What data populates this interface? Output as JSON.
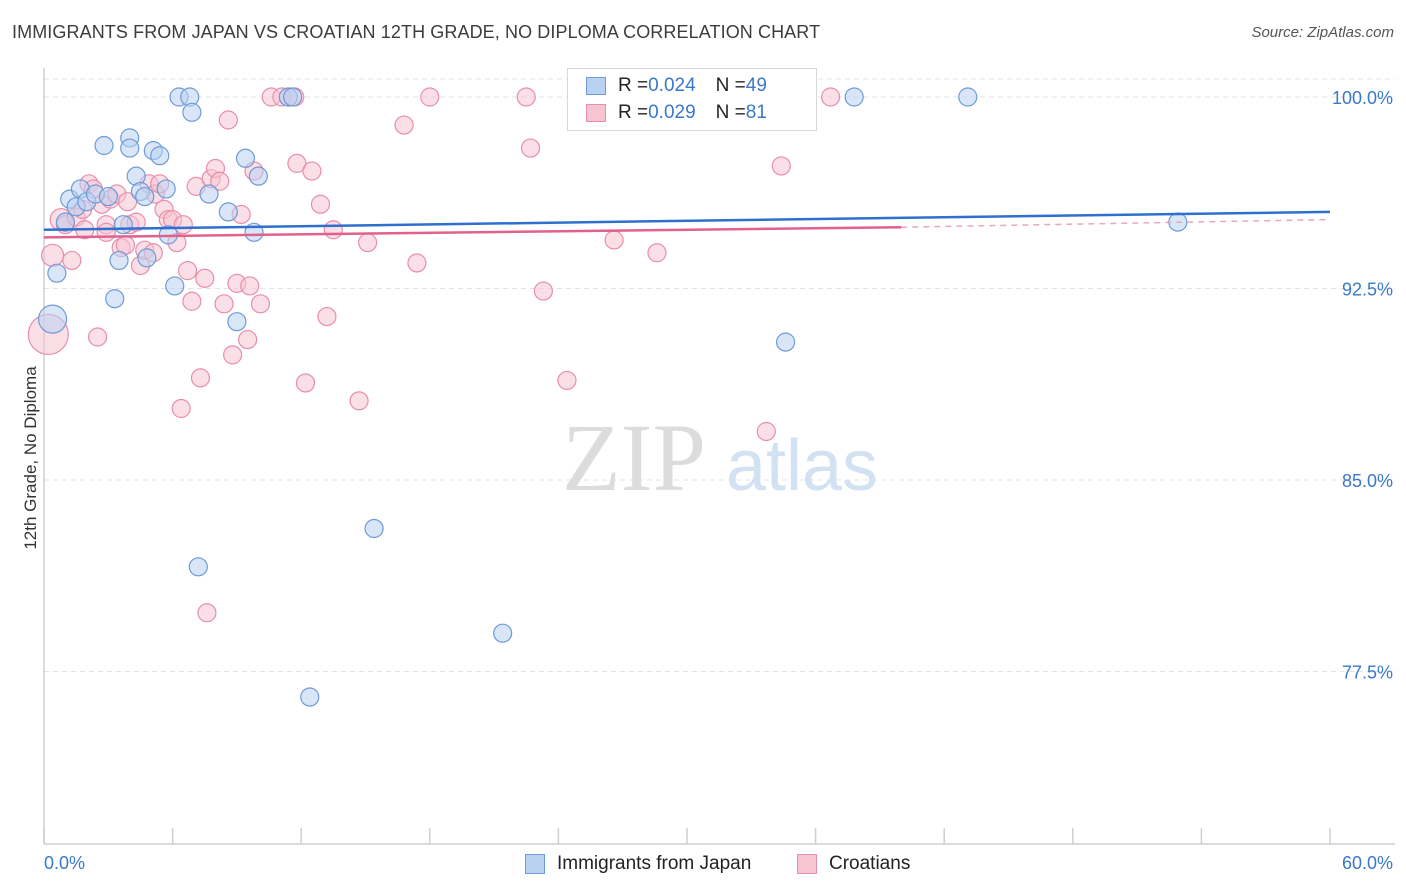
{
  "title": "IMMIGRANTS FROM JAPAN VS CROATIAN 12TH GRADE, NO DIPLOMA CORRELATION CHART",
  "source": "Source: ZipAtlas.com",
  "watermark": {
    "zip": "ZIP",
    "atlas": "atlas"
  },
  "colors": {
    "japan_fill": "#b9d2f2",
    "japan_stroke": "#6f9ad6",
    "japan_line": "#2f6fcf",
    "croatian_fill": "#f6c4d3",
    "croatian_stroke": "#e88eab",
    "croatian_line": "#e0608e",
    "axis_label": "#3a78c9",
    "grid": "#e3e3e3"
  },
  "legend": {
    "japan": {
      "r_label": "R = ",
      "r_value": "0.024",
      "n_label": "N = ",
      "n_value": "49"
    },
    "croatian": {
      "r_label": "R = ",
      "r_value": "0.029",
      "n_label": "N = ",
      "n_value": "81"
    }
  },
  "chart_data": {
    "type": "scatter",
    "xlabel": "",
    "ylabel": "12th Grade, No Diploma",
    "xlim": [
      0,
      60
    ],
    "ylim": [
      70.0,
      101.5
    ],
    "x_tick_labels": [
      {
        "value": 0,
        "label": "0.0%"
      },
      {
        "value": 60,
        "label": "60.0%"
      }
    ],
    "y_tick_labels": [
      {
        "value": 100.0,
        "label": "100.0%"
      },
      {
        "value": 92.5,
        "label": "92.5%"
      },
      {
        "value": 85.0,
        "label": "85.0%"
      },
      {
        "value": 77.5,
        "label": "77.5%"
      }
    ],
    "grid": true,
    "legend_position": "top-center and bottom",
    "series": [
      {
        "name": "Immigrants from Japan",
        "trend": {
          "x": [
            0,
            60
          ],
          "y": [
            94.8,
            95.5
          ]
        },
        "points": [
          [
            0.4,
            91.3,
            14
          ],
          [
            0.6,
            93.1,
            9
          ],
          [
            1.0,
            95.1,
            9
          ],
          [
            1.2,
            96.0,
            9
          ],
          [
            1.5,
            95.7,
            9
          ],
          [
            1.7,
            96.4,
            9
          ],
          [
            2.0,
            95.9,
            9
          ],
          [
            2.4,
            96.2,
            9
          ],
          [
            2.8,
            98.1,
            9
          ],
          [
            3.0,
            96.1,
            9
          ],
          [
            3.3,
            92.1,
            9
          ],
          [
            3.5,
            93.6,
            9
          ],
          [
            3.7,
            95.0,
            9
          ],
          [
            4.0,
            98.4,
            9
          ],
          [
            4.0,
            98.0,
            9
          ],
          [
            4.3,
            96.9,
            9
          ],
          [
            4.5,
            96.3,
            9
          ],
          [
            4.7,
            96.1,
            9
          ],
          [
            4.8,
            93.7,
            9
          ],
          [
            5.1,
            97.9,
            9
          ],
          [
            5.4,
            97.7,
            9
          ],
          [
            5.7,
            96.4,
            9
          ],
          [
            5.8,
            94.6,
            9
          ],
          [
            6.1,
            92.6,
            9
          ],
          [
            6.3,
            100.0,
            9
          ],
          [
            6.8,
            100.0,
            9
          ],
          [
            6.9,
            99.4,
            9
          ],
          [
            7.2,
            81.6,
            9
          ],
          [
            7.7,
            96.2,
            9
          ],
          [
            8.6,
            95.5,
            9
          ],
          [
            9.0,
            91.2,
            9
          ],
          [
            9.4,
            97.6,
            9
          ],
          [
            9.8,
            94.7,
            9
          ],
          [
            10.0,
            96.9,
            9
          ],
          [
            11.4,
            100.0,
            9
          ],
          [
            11.6,
            100.0,
            9
          ],
          [
            12.4,
            76.5,
            9
          ],
          [
            15.4,
            83.1,
            9
          ],
          [
            21.4,
            79.0,
            9
          ],
          [
            28.5,
            100.0,
            9
          ],
          [
            34.6,
            90.4,
            9
          ],
          [
            37.8,
            100.0,
            9
          ],
          [
            43.1,
            100.0,
            9
          ],
          [
            52.9,
            95.1,
            9
          ]
        ]
      },
      {
        "name": "Croatians",
        "trend": {
          "x": [
            0,
            40
          ],
          "y": [
            94.5,
            94.9
          ]
        },
        "dashed_extension": {
          "x": [
            40,
            60
          ],
          "y": [
            94.9,
            95.2
          ]
        },
        "points": [
          [
            0.2,
            90.7,
            20
          ],
          [
            0.4,
            93.8,
            11
          ],
          [
            0.8,
            95.2,
            11
          ],
          [
            1.0,
            95.0,
            9
          ],
          [
            1.3,
            93.6,
            9
          ],
          [
            1.5,
            95.3,
            9
          ],
          [
            1.9,
            94.8,
            9
          ],
          [
            2.1,
            96.6,
            9
          ],
          [
            2.3,
            96.4,
            9
          ],
          [
            2.5,
            90.6,
            9
          ],
          [
            2.7,
            95.8,
            9
          ],
          [
            2.9,
            95.0,
            9
          ],
          [
            3.1,
            96.0,
            9
          ],
          [
            3.4,
            96.2,
            9
          ],
          [
            3.6,
            94.1,
            9
          ],
          [
            3.8,
            94.2,
            9
          ],
          [
            4.0,
            95.0,
            9
          ],
          [
            4.3,
            95.1,
            9
          ],
          [
            4.5,
            93.4,
            9
          ],
          [
            4.7,
            94.0,
            9
          ],
          [
            4.9,
            96.6,
            9
          ],
          [
            5.2,
            96.2,
            9
          ],
          [
            5.4,
            96.6,
            9
          ],
          [
            5.6,
            95.6,
            9
          ],
          [
            5.8,
            95.2,
            9
          ],
          [
            6.0,
            95.2,
            9
          ],
          [
            6.2,
            94.3,
            9
          ],
          [
            6.4,
            87.8,
            9
          ],
          [
            6.7,
            93.2,
            9
          ],
          [
            6.9,
            92.0,
            9
          ],
          [
            7.1,
            96.5,
            9
          ],
          [
            7.3,
            89.0,
            9
          ],
          [
            7.5,
            92.9,
            9
          ],
          [
            7.8,
            96.8,
            9
          ],
          [
            8.0,
            97.2,
            9
          ],
          [
            8.2,
            96.7,
            9
          ],
          [
            8.4,
            91.9,
            9
          ],
          [
            8.6,
            99.1,
            9
          ],
          [
            8.8,
            89.9,
            9
          ],
          [
            9.0,
            92.7,
            9
          ],
          [
            9.2,
            95.4,
            9
          ],
          [
            9.5,
            90.5,
            9
          ],
          [
            9.8,
            97.1,
            9
          ],
          [
            10.1,
            91.9,
            9
          ],
          [
            10.6,
            100.0,
            9
          ],
          [
            11.4,
            100.0,
            9
          ],
          [
            11.7,
            100.0,
            9
          ],
          [
            11.8,
            97.4,
            9
          ],
          [
            12.2,
            88.8,
            9
          ],
          [
            12.5,
            97.1,
            9
          ],
          [
            12.9,
            95.8,
            9
          ],
          [
            13.2,
            91.4,
            9
          ],
          [
            13.5,
            94.8,
            9
          ],
          [
            14.7,
            88.1,
            9
          ],
          [
            15.1,
            94.3,
            9
          ],
          [
            16.8,
            98.9,
            9
          ],
          [
            17.4,
            93.5,
            9
          ],
          [
            18.0,
            100.0,
            9
          ],
          [
            22.5,
            100.0,
            9
          ],
          [
            22.7,
            98.0,
            9
          ],
          [
            23.3,
            92.4,
            9
          ],
          [
            24.4,
            88.9,
            9
          ],
          [
            26.6,
            94.4,
            9
          ],
          [
            28.6,
            93.9,
            9
          ],
          [
            33.7,
            86.9,
            9
          ],
          [
            34.4,
            97.3,
            9
          ],
          [
            36.7,
            100.0,
            9
          ],
          [
            2.9,
            94.7,
            9
          ],
          [
            5.1,
            93.9,
            9
          ],
          [
            1.8,
            95.6,
            9
          ],
          [
            6.5,
            95.0,
            9
          ],
          [
            9.6,
            92.6,
            9
          ],
          [
            11.1,
            100.0,
            9
          ],
          [
            3.9,
            95.9,
            9
          ],
          [
            7.6,
            79.8,
            9
          ]
        ]
      }
    ]
  }
}
